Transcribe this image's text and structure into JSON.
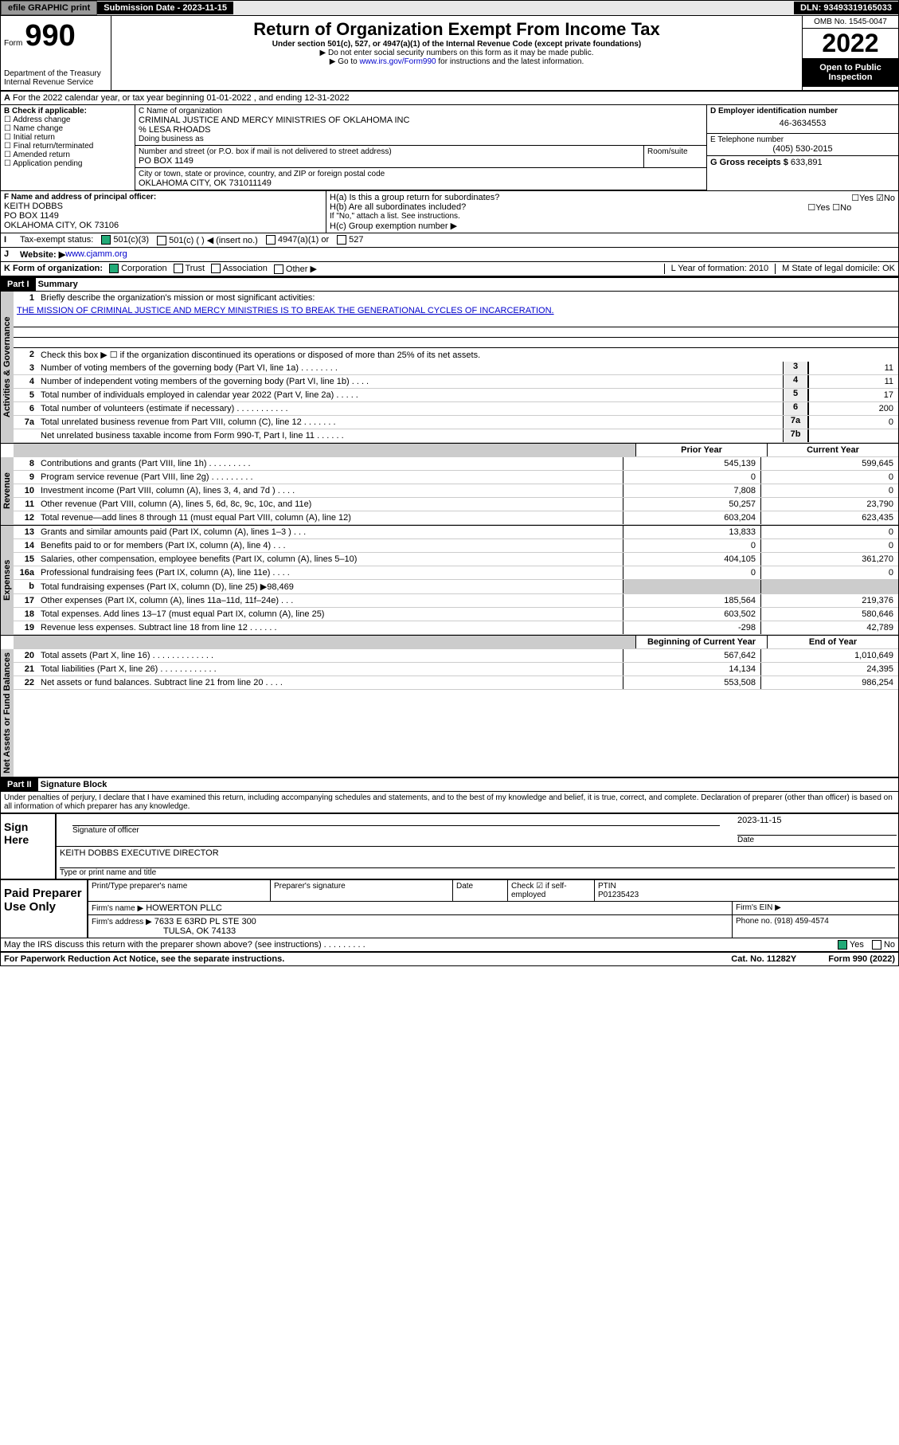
{
  "top": {
    "efile": "efile GRAPHIC print",
    "subdate_label": "Submission Date - 2023-11-15",
    "dln": "DLN: 93493319165033"
  },
  "header": {
    "form": "990",
    "form_prefix": "Form",
    "title": "Return of Organization Exempt From Income Tax",
    "sub1": "Under section 501(c), 527, or 4947(a)(1) of the Internal Revenue Code (except private foundations)",
    "sub2": "▶ Do not enter social security numbers on this form as it may be made public.",
    "sub3": "▶ Go to ",
    "sub3_link": "www.irs.gov/Form990",
    "sub3_tail": " for instructions and the latest information.",
    "dept": "Department of the Treasury",
    "irs": "Internal Revenue Service",
    "omb": "OMB No. 1545-0047",
    "year": "2022",
    "open": "Open to Public Inspection"
  },
  "A": {
    "line": "For the 2022 calendar year, or tax year beginning 01-01-2022   , and ending 12-31-2022"
  },
  "B": {
    "label": "B Check if applicable:",
    "items": [
      "Address change",
      "Name change",
      "Initial return",
      "Final return/terminated",
      "Amended return",
      "Application pending"
    ]
  },
  "C": {
    "name_label": "C Name of organization",
    "name": "CRIMINAL JUSTICE AND MERCY MINISTRIES OF OKLAHOMA INC",
    "care": "% LESA RHOADS",
    "dba_label": "Doing business as",
    "addr_label": "Number and street (or P.O. box if mail is not delivered to street address)",
    "room": "Room/suite",
    "addr": "PO BOX 1149",
    "city_label": "City or town, state or province, country, and ZIP or foreign postal code",
    "city": "OKLAHOMA CITY, OK   731011149"
  },
  "D": {
    "label": "D Employer identification number",
    "val": "46-3634553"
  },
  "E": {
    "label": "E Telephone number",
    "val": "(405) 530-2015"
  },
  "G": {
    "label": "G Gross receipts $",
    "val": "633,891"
  },
  "F": {
    "label": "F  Name and address of principal officer:",
    "name": "KEITH DOBBS",
    "addr1": "PO BOX 1149",
    "addr2": "OKLAHOMA CITY, OK  73106"
  },
  "H": {
    "a": "H(a)  Is this a group return for subordinates?",
    "a_no": "No",
    "a_yes": "Yes",
    "b": "H(b)  Are all subordinates included?",
    "b_yes": "Yes",
    "b_no": "No",
    "b_note": "If \"No,\" attach a list. See instructions.",
    "c": "H(c)  Group exemption number ▶"
  },
  "I": {
    "label": "Tax-exempt status:",
    "c3": "501(c)(3)",
    "c": "501(c) (   ) ◀ (insert no.)",
    "a1": "4947(a)(1) or",
    "s527": "527"
  },
  "J": {
    "label": "Website: ▶ ",
    "val": "www.cjamm.org"
  },
  "K": {
    "label": "K Form of organization:",
    "corp": "Corporation",
    "trust": "Trust",
    "assoc": "Association",
    "other": "Other ▶"
  },
  "L": {
    "label": "L Year of formation: 2010"
  },
  "M": {
    "label": "M State of legal domicile: OK"
  },
  "part1": {
    "hdr": "Part I",
    "title": "Summary",
    "l1": "Briefly describe the organization's mission or most significant activities:",
    "mission": "THE MISSION OF CRIMINAL JUSTICE AND MERCY MINISTRIES IS TO BREAK THE GENERATIONAL CYCLES OF INCARCERATION.",
    "l2": "Check this box ▶ ☐  if the organization discontinued its operations or disposed of more than 25% of its net assets.",
    "rows_gov": [
      {
        "n": "3",
        "d": "Number of voting members of the governing body (Part VI, line 1a)  .   .   .   .   .   .   .   .",
        "b": "3",
        "v": "11"
      },
      {
        "n": "4",
        "d": "Number of independent voting members of the governing body (Part VI, line 1b)  .   .   .   .",
        "b": "4",
        "v": "11"
      },
      {
        "n": "5",
        "d": "Total number of individuals employed in calendar year 2022 (Part V, line 2a)  .   .   .   .   .",
        "b": "5",
        "v": "17"
      },
      {
        "n": "6",
        "d": "Total number of volunteers (estimate if necessary)  .   .   .   .   .   .   .   .   .   .   .",
        "b": "6",
        "v": "200"
      },
      {
        "n": "7a",
        "d": "Total unrelated business revenue from Part VIII, column (C), line 12  .   .   .   .   .   .   .",
        "b": "7a",
        "v": "0"
      },
      {
        "n": "",
        "d": "Net unrelated business taxable income from Form 990-T, Part I, line 11  .   .   .   .   .   .",
        "b": "7b",
        "v": ""
      }
    ],
    "col_prior": "Prior Year",
    "col_curr": "Current Year",
    "rows_rev": [
      {
        "n": "8",
        "d": "Contributions and grants (Part VIII, line 1h)  .   .   .   .   .   .   .   .   .",
        "p": "545,139",
        "c": "599,645"
      },
      {
        "n": "9",
        "d": "Program service revenue (Part VIII, line 2g)  .   .   .   .   .   .   .   .   .",
        "p": "0",
        "c": "0"
      },
      {
        "n": "10",
        "d": "Investment income (Part VIII, column (A), lines 3, 4, and 7d )  .   .   .   .",
        "p": "7,808",
        "c": "0"
      },
      {
        "n": "11",
        "d": "Other revenue (Part VIII, column (A), lines 5, 6d, 8c, 9c, 10c, and 11e)",
        "p": "50,257",
        "c": "23,790"
      },
      {
        "n": "12",
        "d": "Total revenue—add lines 8 through 11 (must equal Part VIII, column (A), line 12)",
        "p": "603,204",
        "c": "623,435"
      }
    ],
    "rows_exp": [
      {
        "n": "13",
        "d": "Grants and similar amounts paid (Part IX, column (A), lines 1–3 )  .   .   .",
        "p": "13,833",
        "c": "0"
      },
      {
        "n": "14",
        "d": "Benefits paid to or for members (Part IX, column (A), line 4)  .   .   .",
        "p": "0",
        "c": "0"
      },
      {
        "n": "15",
        "d": "Salaries, other compensation, employee benefits (Part IX, column (A), lines 5–10)",
        "p": "404,105",
        "c": "361,270"
      },
      {
        "n": "16a",
        "d": "Professional fundraising fees (Part IX, column (A), line 11e)  .   .   .   .",
        "p": "0",
        "c": "0"
      },
      {
        "n": "b",
        "d": "Total fundraising expenses (Part IX, column (D), line 25) ▶98,469",
        "p": "",
        "c": "",
        "shade": true
      },
      {
        "n": "17",
        "d": "Other expenses (Part IX, column (A), lines 11a–11d, 11f–24e)  .   .   .",
        "p": "185,564",
        "c": "219,376"
      },
      {
        "n": "18",
        "d": "Total expenses. Add lines 13–17 (must equal Part IX, column (A), line 25)",
        "p": "603,502",
        "c": "580,646"
      },
      {
        "n": "19",
        "d": "Revenue less expenses. Subtract line 18 from line 12  .   .   .   .   .   .",
        "p": "-298",
        "c": "42,789"
      }
    ],
    "col_beg": "Beginning of Current Year",
    "col_end": "End of Year",
    "rows_net": [
      {
        "n": "20",
        "d": "Total assets (Part X, line 16)  .   .   .   .   .   .   .   .   .   .   .   .   .",
        "p": "567,642",
        "c": "1,010,649"
      },
      {
        "n": "21",
        "d": "Total liabilities (Part X, line 26)  .   .   .   .   .   .   .   .   .   .   .   .",
        "p": "14,134",
        "c": "24,395"
      },
      {
        "n": "22",
        "d": "Net assets or fund balances. Subtract line 21 from line 20  .   .   .   .",
        "p": "553,508",
        "c": "986,254"
      }
    ],
    "tabs": {
      "gov": "Activities & Governance",
      "rev": "Revenue",
      "exp": "Expenses",
      "net": "Net Assets or Fund Balances"
    }
  },
  "part2": {
    "hdr": "Part II",
    "title": "Signature Block",
    "decl": "Under penalties of perjury, I declare that I have examined this return, including accompanying schedules and statements, and to the best of my knowledge and belief, it is true, correct, and complete. Declaration of preparer (other than officer) is based on all information of which preparer has any knowledge.",
    "sign_here": "Sign Here",
    "sig_off": "Signature of officer",
    "date": "Date",
    "date_v": "2023-11-15",
    "officer": "KEITH DOBBS  EXECUTIVE DIRECTOR",
    "type_label": "Type or print name and title",
    "paid": "Paid Preparer Use Only",
    "pt_name": "Print/Type preparer's name",
    "pt_sig": "Preparer's signature",
    "pt_date": "Date",
    "check_se": "Check ☑ if self-employed",
    "ptin_l": "PTIN",
    "ptin": "P01235423",
    "firm_name_l": "Firm's name  ▶",
    "firm_name": "HOWERTON PLLC",
    "firm_ein": "Firm's EIN ▶",
    "firm_addr_l": "Firm's address ▶",
    "firm_addr": "7633 E 63RD PL STE 300",
    "firm_city": "TULSA, OK  74133",
    "phone_l": "Phone no.",
    "phone": "(918) 459-4574",
    "discuss": "May the IRS discuss this return with the preparer shown above? (see instructions)  .   .   .   .   .   .   .   .   .",
    "yes": "Yes",
    "no": "No"
  },
  "footer": {
    "l": "For Paperwork Reduction Act Notice, see the separate instructions.",
    "c": "Cat. No. 11282Y",
    "r": "Form 990 (2022)"
  }
}
